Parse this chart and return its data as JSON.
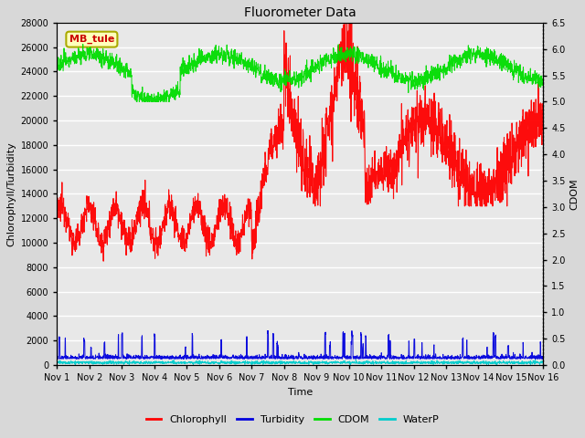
{
  "title": "Fluorometer Data",
  "xlabel": "Time",
  "ylabel_left": "Chlorophyll/Turbidity",
  "ylabel_right": "CDOM",
  "annotation": "MB_tule",
  "xlim": [
    0,
    15
  ],
  "ylim_left": [
    0,
    28000
  ],
  "ylim_right": [
    0.0,
    6.5
  ],
  "yticks_left": [
    0,
    2000,
    4000,
    6000,
    8000,
    10000,
    12000,
    14000,
    16000,
    18000,
    20000,
    22000,
    24000,
    26000,
    28000
  ],
  "yticks_right": [
    0.0,
    0.5,
    1.0,
    1.5,
    2.0,
    2.5,
    3.0,
    3.5,
    4.0,
    4.5,
    5.0,
    5.5,
    6.0,
    6.5
  ],
  "xtick_positions": [
    0,
    1,
    2,
    3,
    4,
    5,
    6,
    7,
    8,
    9,
    10,
    11,
    12,
    13,
    14,
    15
  ],
  "xtick_labels": [
    "Nov 1",
    "Nov 2",
    "Nov 3",
    "Nov 4",
    "Nov 5",
    "Nov 6",
    "Nov 7",
    "Nov 8",
    "Nov 9",
    "Nov 10",
    "Nov 11",
    "Nov 12",
    "Nov 13",
    "Nov 14",
    "Nov 15",
    "Nov 16"
  ],
  "fig_facecolor": "#d8d8d8",
  "ax_facecolor": "#e8e8e8",
  "grid_color": "#ffffff",
  "chlorophyll_color": "#ff0000",
  "turbidity_color": "#0000dd",
  "cdom_color": "#00dd00",
  "waterp_color": "#00cccc",
  "legend_entries": [
    "Chlorophyll",
    "Turbidity",
    "CDOM",
    "WaterP"
  ],
  "annotation_bg": "#ffffbb",
  "annotation_border": "#aaaa00",
  "annotation_text_color": "#cc0000",
  "title_fontsize": 10,
  "label_fontsize": 8,
  "tick_fontsize": 7,
  "legend_fontsize": 8
}
